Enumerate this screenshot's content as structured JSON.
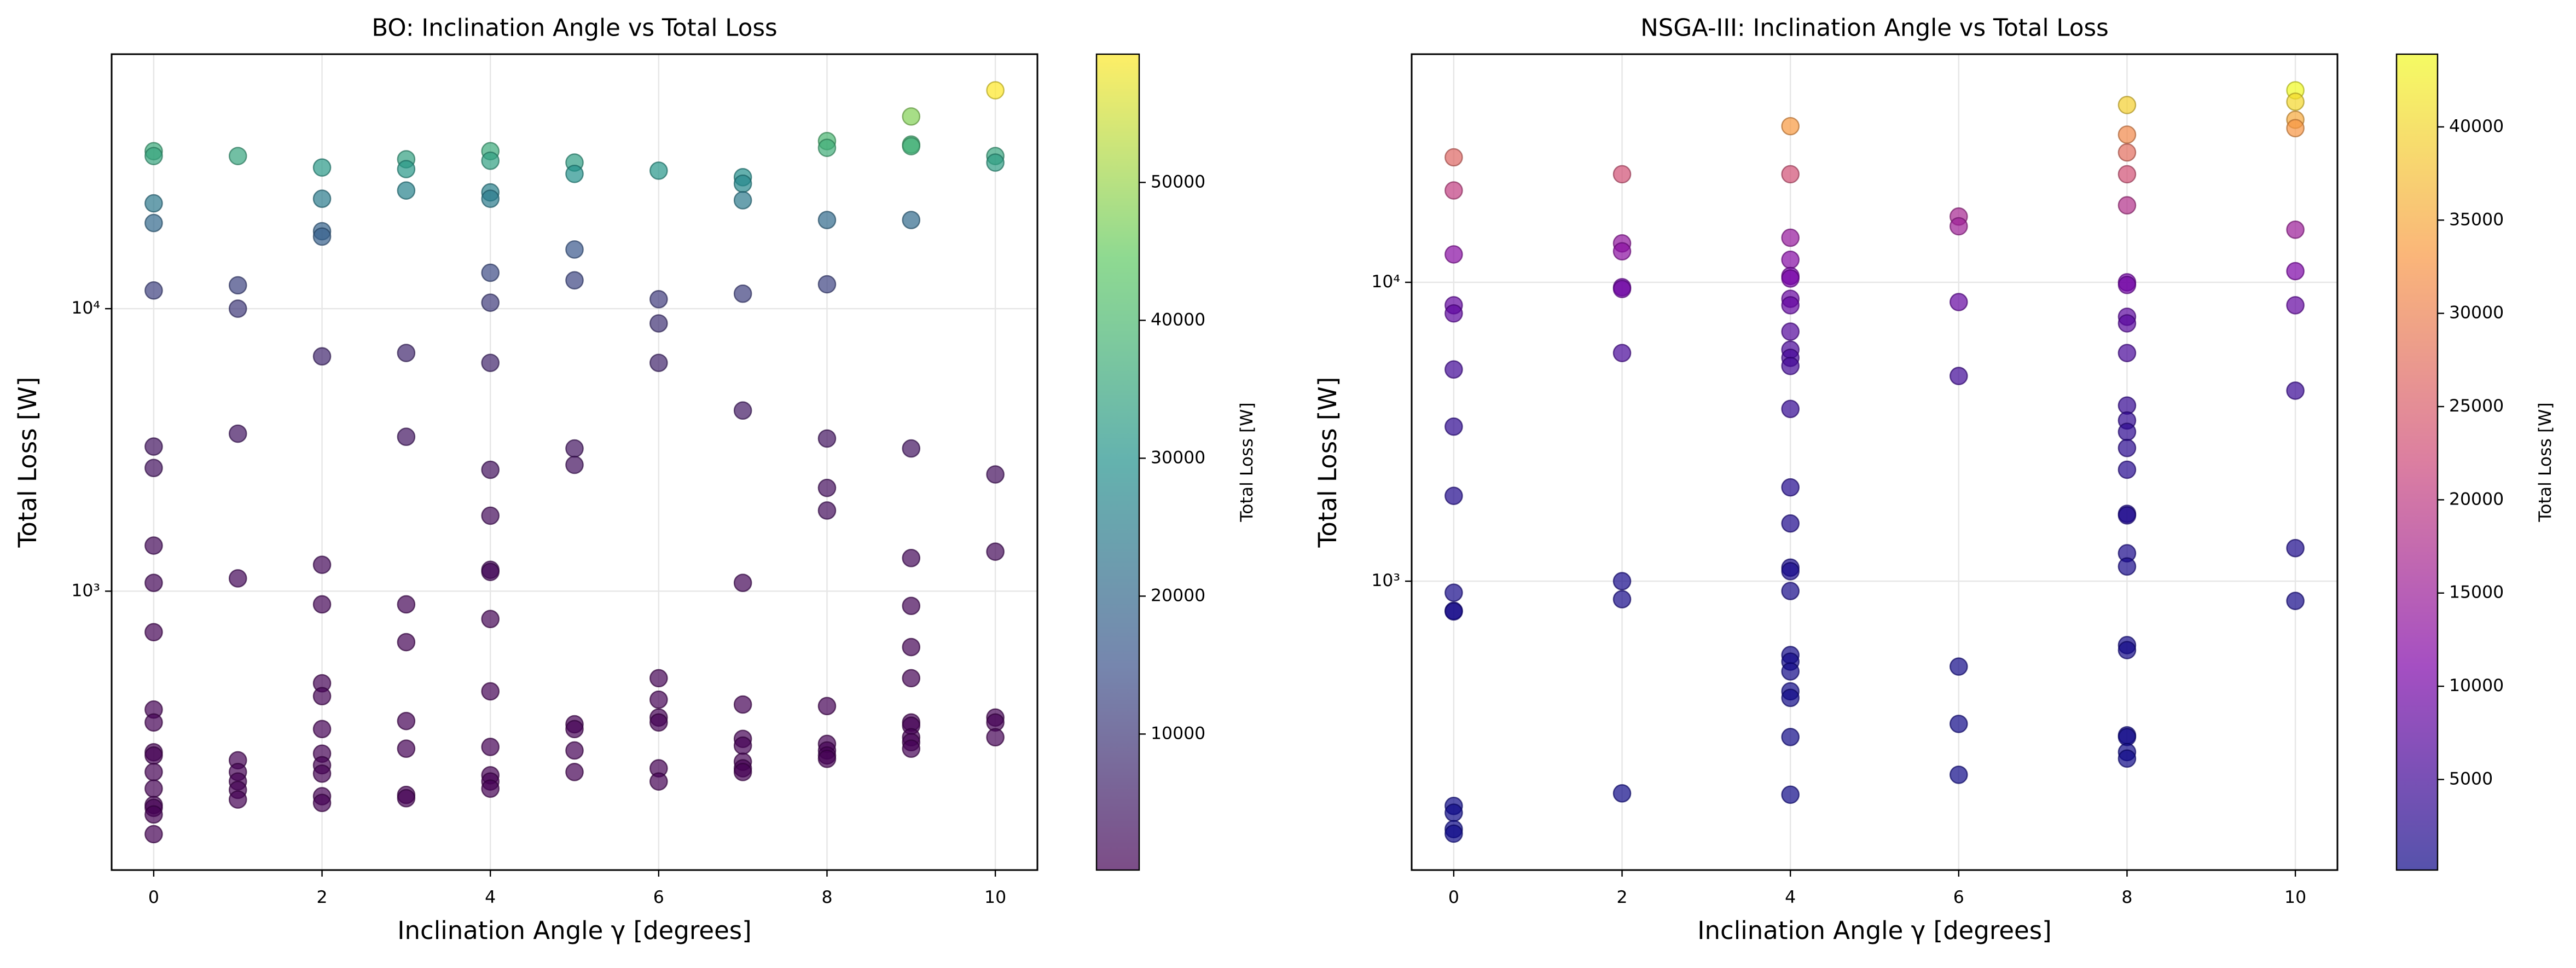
{
  "chart_data": [
    {
      "type": "scatter",
      "title": "BO: Inclination Angle vs Total Loss",
      "x_label": "Inclination Angle γ [degrees]",
      "y_label": "Total Loss [W]",
      "xlim": [
        -0.5,
        10.5
      ],
      "xticks": [
        0,
        2,
        4,
        6,
        8,
        10
      ],
      "ylim": [
        103,
        79600
      ],
      "y_log": true,
      "yticks": [
        {
          "value": 1000,
          "label": "10³"
        },
        {
          "value": 10000,
          "label": "10⁴"
        }
      ],
      "grid": true,
      "cmap": "viridis",
      "alpha": 0.7,
      "colorbar": {
        "label": "Total Loss [W]",
        "clim": [
          138,
          59300
        ],
        "ticks": [
          10000,
          20000,
          30000,
          40000,
          50000
        ]
      },
      "x": [
        0,
        0,
        0,
        0,
        0,
        0,
        0,
        0,
        0,
        0,
        0,
        0,
        0,
        0,
        0,
        0,
        0,
        0,
        0,
        0,
        1,
        1,
        1,
        1,
        1,
        1,
        1,
        1,
        1,
        1,
        2,
        2,
        2,
        2,
        2,
        2,
        2,
        2,
        2,
        2,
        2,
        2,
        2,
        2,
        2,
        3,
        3,
        3,
        3,
        3,
        3,
        3,
        3,
        3,
        3,
        3,
        4,
        4,
        4,
        4,
        4,
        4,
        4,
        4,
        4,
        4,
        4,
        4,
        4,
        4,
        4,
        4,
        4,
        5,
        5,
        5,
        5,
        5,
        5,
        5,
        5,
        5,
        5,
        6,
        6,
        6,
        6,
        6,
        6,
        6,
        6,
        6,
        6,
        7,
        7,
        7,
        7,
        7,
        7,
        7,
        7,
        7,
        7,
        7,
        7,
        8,
        8,
        8,
        8,
        8,
        8,
        8,
        8,
        8,
        8,
        8,
        8,
        9,
        9,
        9,
        9,
        9,
        9,
        9,
        9,
        9,
        9,
        9,
        9,
        9,
        9,
        10,
        10,
        10,
        10,
        10,
        10,
        10,
        10
      ],
      "values": [
        36100,
        34700,
        23600,
        20100,
        11600,
        3250,
        2730,
        1450,
        1070,
        716,
        381,
        343,
        269,
        262,
        229,
        200,
        175,
        171,
        162,
        138,
        34700,
        12100,
        10000,
        3610,
        1110,
        252,
        229,
        212,
        198,
        183,
        31600,
        24500,
        18800,
        18000,
        6780,
        1240,
        898,
        472,
        425,
        325,
        266,
        242,
        226,
        188,
        178,
        33800,
        31200,
        26200,
        6970,
        3520,
        898,
        660,
        347,
        277,
        190,
        185,
        36100,
        33400,
        25800,
        24500,
        13400,
        10500,
        6430,
        2690,
        1850,
        1190,
        1170,
        797,
        442,
        281,
        223,
        212,
        200,
        32900,
        30000,
        16200,
        12600,
        3200,
        2800,
        338,
        325,
        273,
        229,
        30800,
        10800,
        8870,
        6430,
        492,
        413,
        357,
        343,
        236,
        212,
        29200,
        27700,
        24200,
        11300,
        4360,
        1070,
        397,
        300,
        284,
        249,
        236,
        229,
        39200,
        37100,
        20600,
        12200,
        3470,
        2320,
        1930,
        392,
        288,
        273,
        262,
        255,
        47900,
        38100,
        37600,
        20600,
        3200,
        1310,
        887,
        634,
        492,
        343,
        334,
        304,
        292,
        277,
        59300,
        34700,
        32900,
        2590,
        1380,
        357,
        343,
        304
      ]
    },
    {
      "type": "scatter",
      "title": "NSGA-III: Inclination Angle vs Total Loss",
      "x_label": "Inclination Angle γ [degrees]",
      "y_label": "Total Loss [W]",
      "xlim": [
        -0.5,
        10.5
      ],
      "xticks": [
        0,
        2,
        4,
        6,
        8,
        10
      ],
      "ylim": [
        108,
        58000
      ],
      "y_log": true,
      "yticks": [
        {
          "value": 1000,
          "label": "10³"
        },
        {
          "value": 10000,
          "label": "10⁴"
        }
      ],
      "grid": true,
      "cmap": "plasma",
      "alpha": 0.7,
      "colorbar": {
        "label": "Total Loss [W]",
        "clim": [
          143,
          43900
        ],
        "ticks": [
          5000,
          10000,
          15000,
          20000,
          25000,
          30000,
          35000,
          40000
        ]
      },
      "x": [
        0,
        0,
        0,
        0,
        0,
        0,
        0,
        0,
        0,
        0,
        0,
        0,
        0,
        0,
        0,
        2,
        2,
        2,
        2,
        2,
        2,
        2,
        2,
        2,
        4,
        4,
        4,
        4,
        4,
        4,
        4,
        4,
        4,
        4,
        4,
        4,
        4,
        4,
        4,
        4,
        4,
        4,
        4,
        4,
        4,
        4,
        4,
        4,
        4,
        6,
        6,
        6,
        6,
        6,
        6,
        6,
        8,
        8,
        8,
        8,
        8,
        8,
        8,
        8,
        8,
        8,
        8,
        8,
        8,
        8,
        8,
        8,
        8,
        8,
        8,
        8,
        8,
        8,
        8,
        8,
        8,
        10,
        10,
        10,
        10,
        10,
        10,
        10,
        10,
        10,
        10
      ],
      "values": [
        26200,
        20300,
        12400,
        8380,
        7870,
        5110,
        3290,
        1930,
        915,
        796,
        792,
        177,
        168,
        148,
        143,
        23000,
        13500,
        12700,
        9630,
        9500,
        5800,
        1000,
        870,
        195,
        33300,
        23000,
        14100,
        11900,
        10500,
        10300,
        8810,
        8380,
        6840,
        5950,
        5590,
        5250,
        3770,
        2060,
        1560,
        1110,
        1080,
        927,
        566,
        538,
        499,
        428,
        407,
        301,
        193,
        16600,
        15400,
        8590,
        4860,
        518,
        333,
        225,
        39200,
        31200,
        27200,
        23000,
        18100,
        10000,
        9800,
        7670,
        7290,
        5800,
        3870,
        3450,
        3160,
        2790,
        2360,
        1680,
        1660,
        1240,
        1120,
        611,
        588,
        305,
        301,
        268,
        255,
        43900,
        40200,
        35000,
        32800,
        15000,
        10900,
        8380,
        4340,
        1290,
        859
      ]
    }
  ]
}
